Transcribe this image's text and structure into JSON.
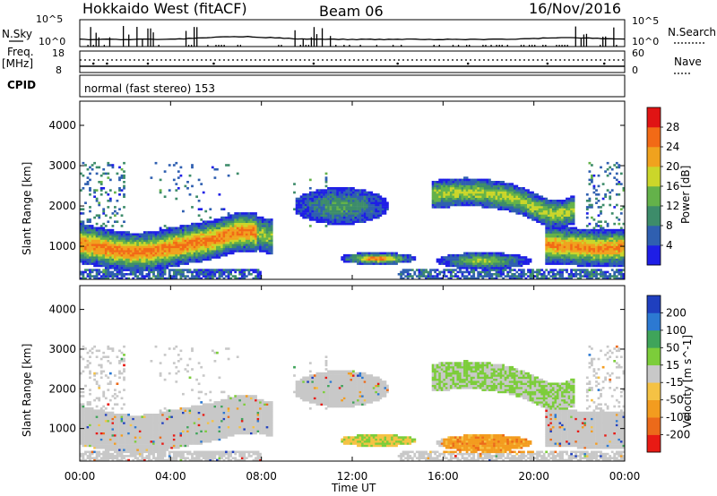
{
  "header": {
    "radar": "Hokkaido West (fitACF)",
    "beam": "Beam 06",
    "date": "16/Nov/2016"
  },
  "sky_panel": {
    "left_label": "N.Sky",
    "right_label": "N.Search",
    "left_ticks": [
      "10^5",
      "10^0"
    ],
    "right_ticks": [
      "10^5",
      "10^0"
    ]
  },
  "freq_panel": {
    "left_label": "Freq.",
    "unit": "[MHz]",
    "left_ticks": [
      "18",
      "8"
    ],
    "right_label": "Nave",
    "right_ticks": [
      "60",
      "0"
    ]
  },
  "cpid_panel": {
    "label": "CPID",
    "mode": "normal (fast stereo) 153"
  },
  "chart_data": [
    {
      "type": "heatmap",
      "quantity": "Power",
      "ylabel": "Slant Range [km]",
      "colorbar_label": "Power [dB]",
      "ylim": [
        180,
        4600
      ],
      "yticks": [
        "1000",
        "2000",
        "3000",
        "4000"
      ],
      "colorbar_ticks": [
        "4",
        "8",
        "12",
        "16",
        "20",
        "24",
        "28"
      ],
      "colorbar_range": [
        0,
        32
      ],
      "colors": [
        "#1e1ee6",
        "#2f5fb0",
        "#3d8c6a",
        "#64b24a",
        "#cbd62a",
        "#f0a21e",
        "#f26a16",
        "#e01414"
      ]
    },
    {
      "type": "heatmap",
      "quantity": "Velocity",
      "ylabel": "Slant Range [km]",
      "xlabel": "Time UT",
      "colorbar_label": "Velocity [m s^-1]",
      "ylim": [
        180,
        4600
      ],
      "yticks": [
        "1000",
        "2000",
        "3000",
        "4000"
      ],
      "xticks": [
        "00:00",
        "04:00",
        "08:00",
        "12:00",
        "16:00",
        "20:00",
        "00:00"
      ],
      "colorbar_ticks": [
        "200",
        "100",
        "50",
        "15",
        "-15",
        "-50",
        "-100",
        "-200"
      ],
      "colors": [
        "#1f3fbf",
        "#2c79d2",
        "#3fa45a",
        "#7ccd3a",
        "#c8c8c8",
        "#f5c244",
        "#f39c1f",
        "#ec6a1a",
        "#e81a14"
      ]
    }
  ]
}
